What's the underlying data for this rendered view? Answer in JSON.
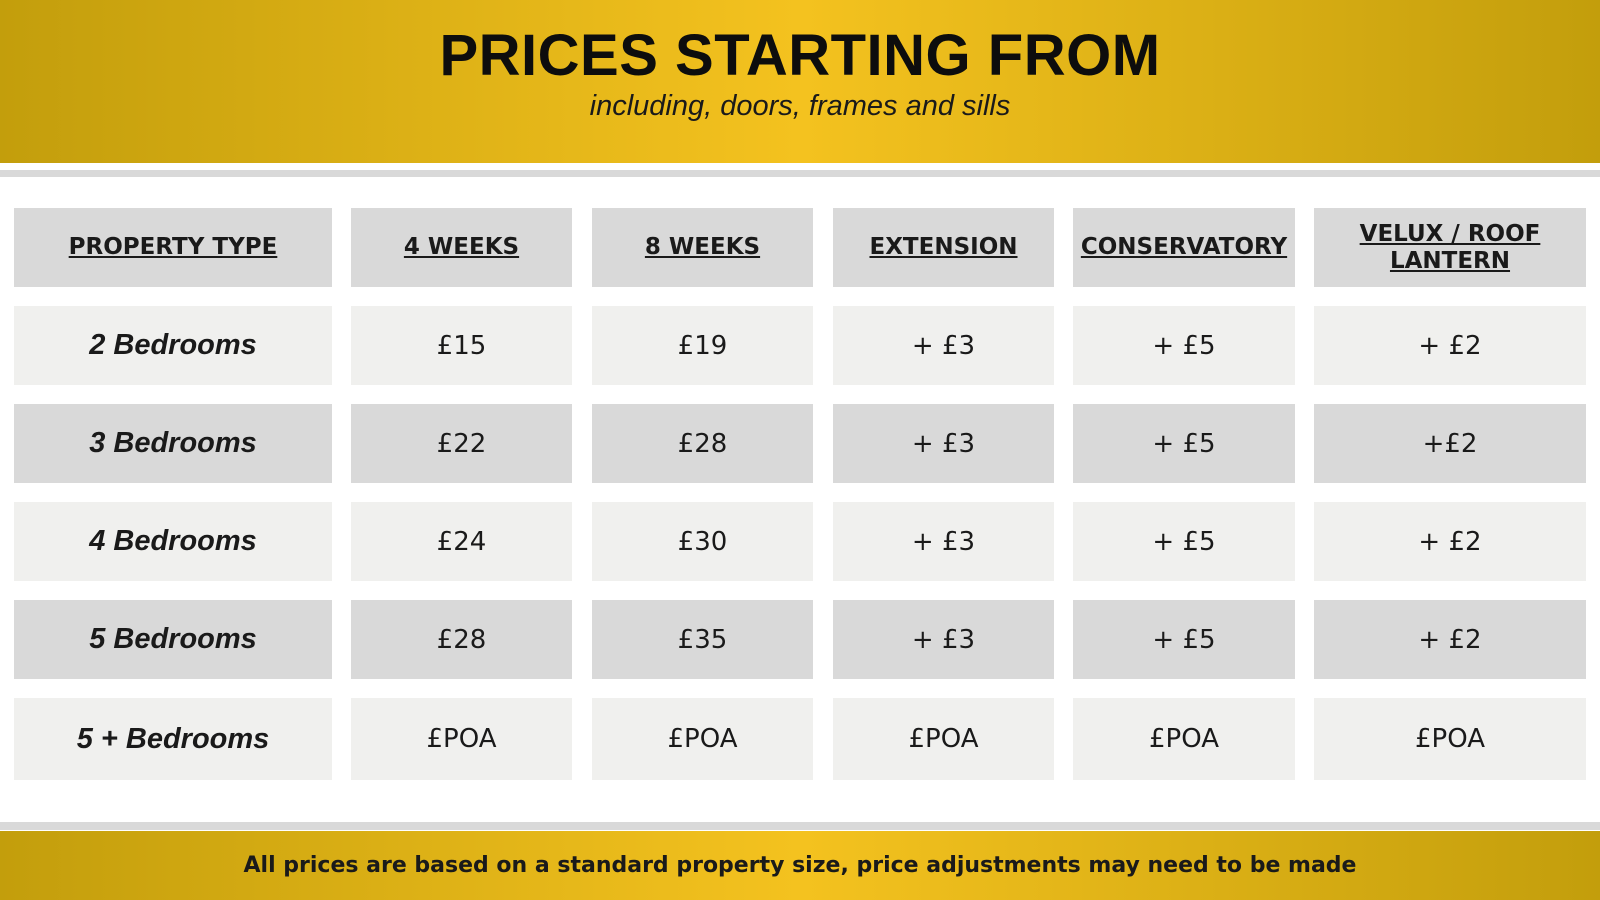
{
  "header": {
    "title": "PRICES STARTING FROM",
    "subtitle": "including, doors, frames and sills"
  },
  "table": {
    "columns": [
      "PROPERTY TYPE",
      "4 WEEKS",
      "8 WEEKS",
      "EXTENSION",
      "CONSERVATORY",
      "VELUX / ROOF LANTERN"
    ],
    "rows": [
      [
        "2 Bedrooms",
        "£15",
        "£19",
        "+ £3",
        "+ £5",
        "+ £2"
      ],
      [
        "3 Bedrooms",
        "£22",
        "£28",
        "+ £3",
        "+ £5",
        "+£2"
      ],
      [
        "4 Bedrooms",
        "£24",
        "£30",
        "+ £3",
        "+ £5",
        "+ £2"
      ],
      [
        "5 Bedrooms",
        "£28",
        "£35",
        "+ £3",
        "+ £5",
        "+ £2"
      ],
      [
        "5 + Bedrooms",
        "£POA",
        "£POA",
        "£POA",
        "£POA",
        "£POA"
      ]
    ]
  },
  "footer": {
    "note": "All prices are based on a standard property size, price adjustments may need to be made"
  }
}
